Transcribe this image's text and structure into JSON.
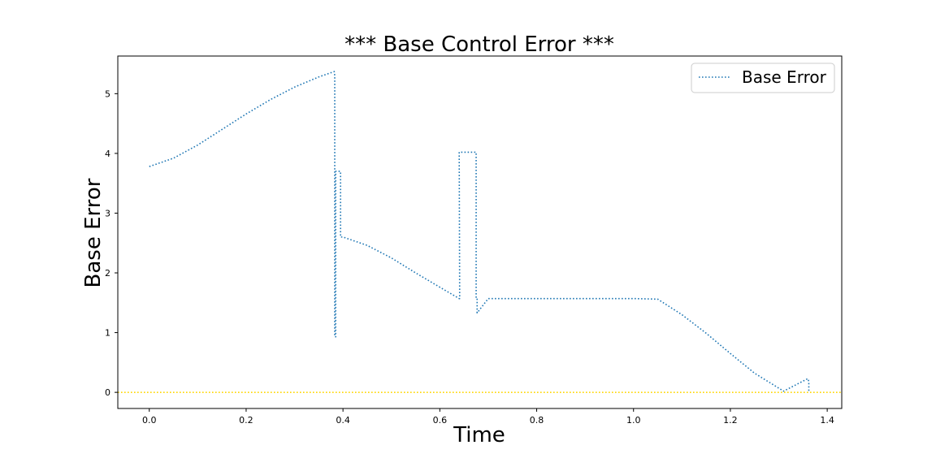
{
  "chart_data": {
    "type": "line",
    "title": "*** Base Control Error ***",
    "xlabel": "Time",
    "ylabel": "Base Error",
    "xlim": [
      -0.065,
      1.43
    ],
    "ylim": [
      -0.27,
      5.63
    ],
    "x_ticks": [
      0.0,
      0.2,
      0.4,
      0.6,
      0.8,
      1.0,
      1.2,
      1.4
    ],
    "x_tick_labels": [
      "0.0",
      "0.2",
      "0.4",
      "0.6",
      "0.8",
      "1.0",
      "1.2",
      "1.4"
    ],
    "y_ticks": [
      0,
      1,
      2,
      3,
      4,
      5
    ],
    "y_tick_labels": [
      "0",
      "1",
      "2",
      "3",
      "4",
      "5"
    ],
    "grid": false,
    "legend_position": "upper right",
    "series": [
      {
        "name": "Base Error",
        "color": "#1f77b4",
        "line_style": "dotted",
        "x": [
          0.0,
          0.05,
          0.1,
          0.15,
          0.2,
          0.25,
          0.3,
          0.35,
          0.382,
          0.383,
          0.383,
          0.385,
          0.385,
          0.395,
          0.395,
          0.4,
          0.45,
          0.5,
          0.55,
          0.6,
          0.64,
          0.641,
          0.64,
          0.675,
          0.675,
          0.677,
          0.677,
          0.7,
          0.8,
          0.9,
          1.0,
          1.05,
          1.1,
          1.15,
          1.2,
          1.25,
          1.31,
          1.36,
          1.362,
          1.362
        ],
        "y": [
          3.78,
          3.92,
          4.14,
          4.4,
          4.66,
          4.9,
          5.11,
          5.28,
          5.37,
          5.3,
          0.93,
          0.93,
          3.7,
          3.7,
          2.6,
          2.6,
          2.46,
          2.25,
          2.0,
          1.76,
          1.57,
          1.57,
          4.02,
          4.02,
          1.57,
          1.57,
          1.33,
          1.57,
          1.57,
          1.57,
          1.57,
          1.56,
          1.3,
          0.99,
          0.65,
          0.32,
          0.02,
          0.23,
          0.18,
          0.0
        ]
      },
      {
        "name": "",
        "color": "#ffd700",
        "line_style": "dotted",
        "x": [
          -0.065,
          1.43
        ],
        "y": [
          0,
          0
        ]
      }
    ]
  }
}
